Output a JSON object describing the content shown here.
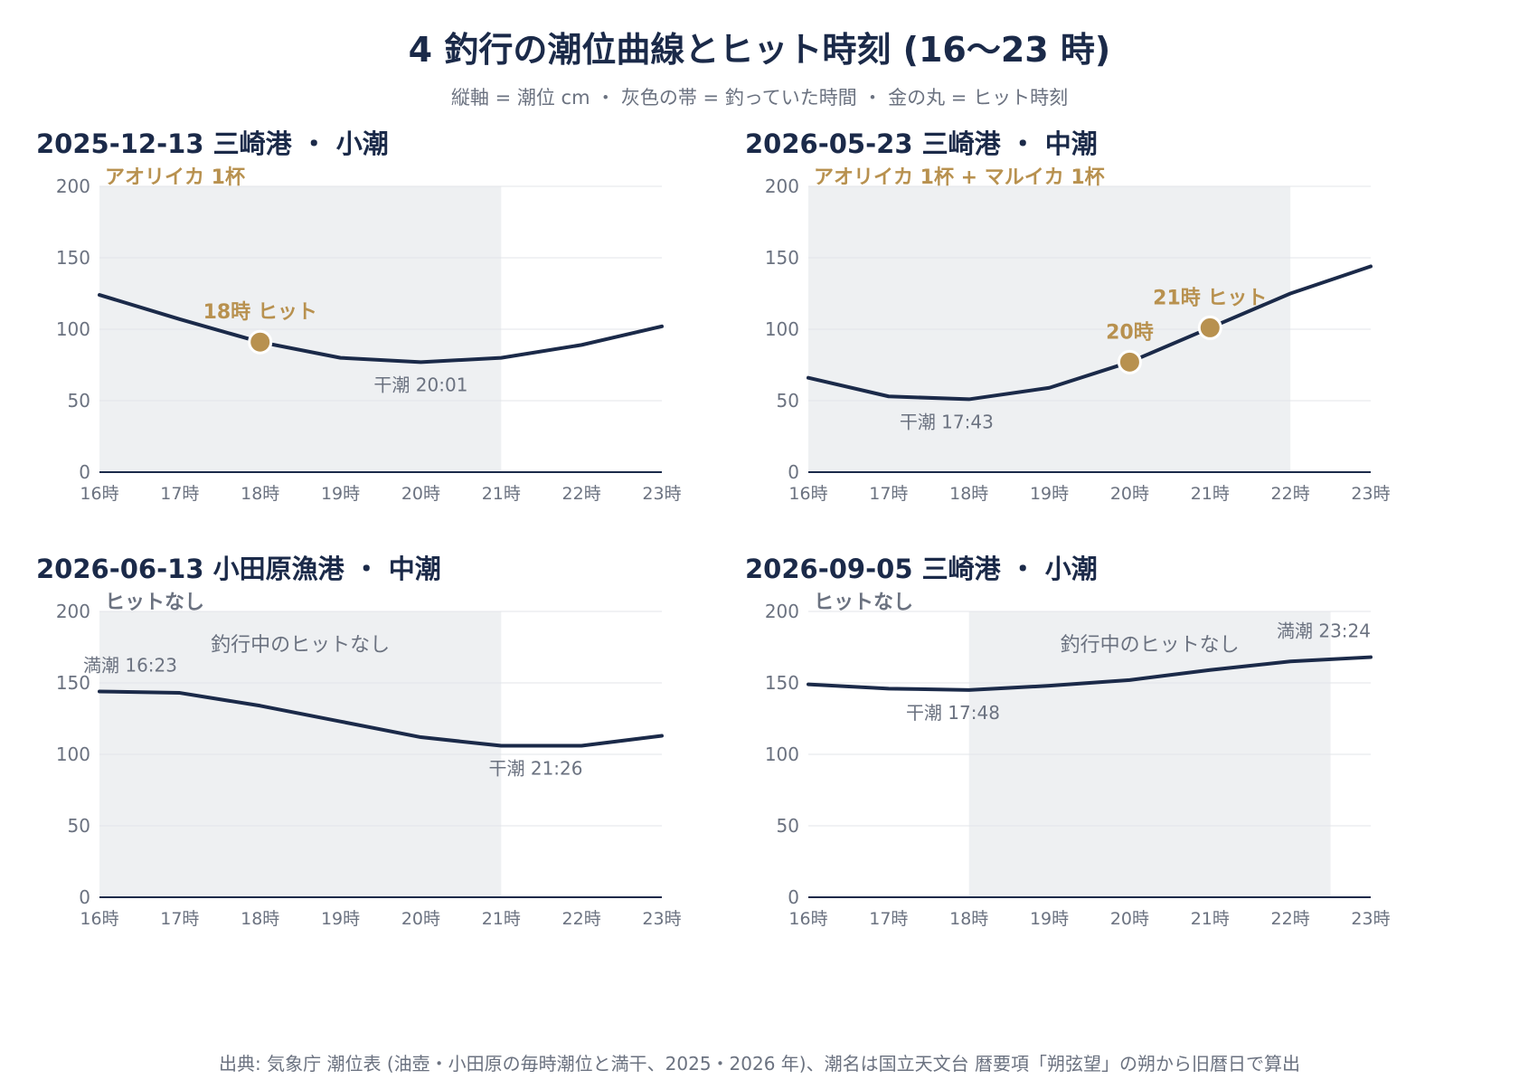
{
  "title": "4 釣行の潮位曲線とヒット時刻 (16〜23 時)",
  "subtitle": "縦軸 = 潮位 cm ・ 灰色の帯 = 釣っていた時間 ・ 金の丸 = ヒット時刻",
  "source": "出典: 気象庁 潮位表 (油壺・小田原の毎時潮位と満干、2025・2026 年)、潮名は国立天文台 暦要項「朔弦望」の朔から旧暦日で算出",
  "colors": {
    "line": "#1b2a49",
    "band": "#eef0f2",
    "hit": "#b8914f",
    "grid": "#e3e5e9",
    "muted": "#6b7280"
  },
  "chart_data": [
    {
      "type": "line",
      "title": "2025-12-13 三崎港 ・ 小潮",
      "catch_label": "アオリイカ 1杯",
      "catch_color": "#b8914f",
      "x": [
        16,
        17,
        18,
        19,
        20,
        21,
        22,
        23
      ],
      "x_tick_labels": [
        "16時",
        "17時",
        "18時",
        "19時",
        "20時",
        "21時",
        "22時",
        "23時"
      ],
      "y": [
        124,
        107,
        91,
        80,
        77,
        80,
        89,
        102
      ],
      "ylim": [
        0,
        200
      ],
      "y_ticks": [
        0,
        50,
        100,
        150,
        200
      ],
      "fishing_band": [
        16,
        21
      ],
      "hits": [
        {
          "x": 18,
          "y": 91,
          "label": "18時 ヒット"
        }
      ],
      "annotations": [
        {
          "text": "干潮 20:01",
          "x": 20,
          "y": 77
        }
      ]
    },
    {
      "type": "line",
      "title": "2026-05-23 三崎港 ・ 中潮",
      "catch_label": "アオリイカ 1杯 + マルイカ 1杯",
      "catch_color": "#b8914f",
      "x": [
        16,
        17,
        18,
        19,
        20,
        21,
        22,
        23
      ],
      "x_tick_labels": [
        "16時",
        "17時",
        "18時",
        "19時",
        "20時",
        "21時",
        "22時",
        "23時"
      ],
      "y": [
        66,
        53,
        51,
        59,
        77,
        101,
        125,
        144
      ],
      "ylim": [
        0,
        200
      ],
      "y_ticks": [
        0,
        50,
        100,
        150,
        200
      ],
      "fishing_band": [
        16,
        22
      ],
      "hits": [
        {
          "x": 20,
          "y": 77,
          "label": "20時"
        },
        {
          "x": 21,
          "y": 101,
          "label": "21時 ヒット"
        }
      ],
      "annotations": [
        {
          "text": "干潮 17:43",
          "x": 17.72,
          "y": 51
        }
      ]
    },
    {
      "type": "line",
      "title": "2026-06-13 小田原漁港 ・ 中潮",
      "catch_label": "ヒットなし",
      "catch_color": "#6b7280",
      "x": [
        16,
        17,
        18,
        19,
        20,
        21,
        22,
        23
      ],
      "x_tick_labels": [
        "16時",
        "17時",
        "18時",
        "19時",
        "20時",
        "21時",
        "22時",
        "23時"
      ],
      "y": [
        144,
        143,
        134,
        123,
        112,
        106,
        106,
        113
      ],
      "ylim": [
        0,
        200
      ],
      "y_ticks": [
        0,
        50,
        100,
        150,
        200
      ],
      "fishing_band": [
        16,
        21
      ],
      "band_label": "釣行中のヒットなし",
      "hits": [],
      "annotations": [
        {
          "text": "満潮 16:23",
          "x": 16.38,
          "y": 144
        },
        {
          "text": "干潮 21:26",
          "x": 21.43,
          "y": 106
        }
      ]
    },
    {
      "type": "line",
      "title": "2026-09-05 三崎港 ・ 小潮",
      "catch_label": "ヒットなし",
      "catch_color": "#6b7280",
      "x": [
        16,
        17,
        18,
        19,
        20,
        21,
        22,
        23
      ],
      "x_tick_labels": [
        "16時",
        "17時",
        "18時",
        "19時",
        "20時",
        "21時",
        "22時",
        "23時"
      ],
      "y": [
        149,
        146,
        145,
        148,
        152,
        159,
        165,
        168
      ],
      "ylim": [
        0,
        200
      ],
      "y_ticks": [
        0,
        50,
        100,
        150,
        200
      ],
      "fishing_band": [
        18,
        22.5
      ],
      "band_label": "釣行中のヒットなし",
      "hits": [],
      "annotations": [
        {
          "text": "干潮 17:48",
          "x": 17.8,
          "y": 145
        },
        {
          "text": "満潮 23:24",
          "x": 23.4,
          "y": 168
        }
      ]
    }
  ]
}
